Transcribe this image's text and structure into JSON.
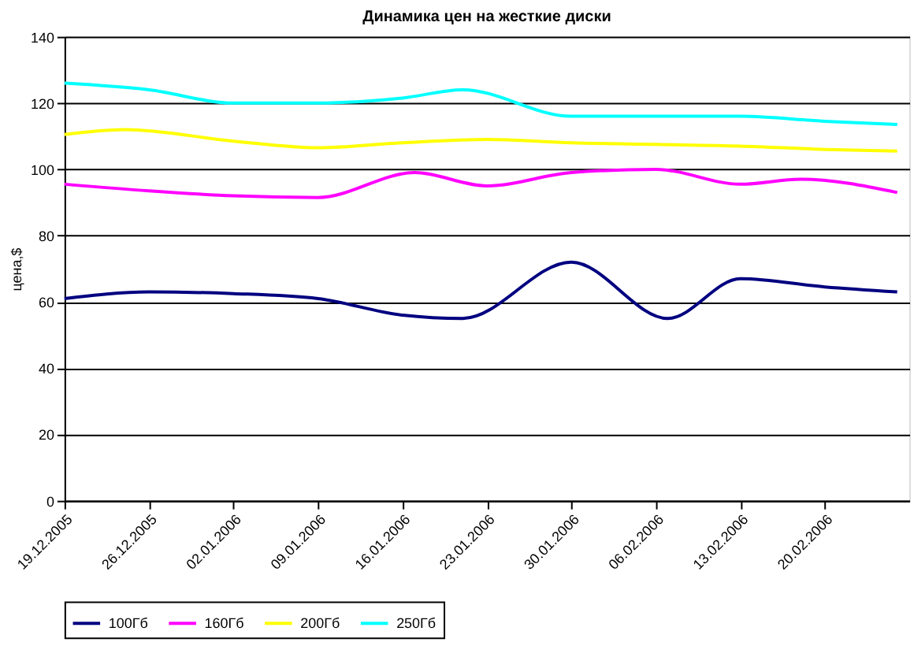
{
  "chart_data": {
    "type": "line",
    "title": "Динамика цен на жесткие диски",
    "ylabel": "цена,$",
    "xlim": [
      "2005-12-19",
      "2006-02-27"
    ],
    "xticks": [
      {
        "value": "2005-12-19",
        "label": "19.12.2005"
      },
      {
        "value": "2005-12-26",
        "label": "26.12.2005"
      },
      {
        "value": "2006-01-02",
        "label": "02.01.2006"
      },
      {
        "value": "2006-01-09",
        "label": "09.01.2006"
      },
      {
        "value": "2006-01-16",
        "label": "16.01.2006"
      },
      {
        "value": "2006-01-23",
        "label": "23.01.2006"
      },
      {
        "value": "2006-01-30",
        "label": "30.01.2006"
      },
      {
        "value": "2006-02-06",
        "label": "06.02.2006"
      },
      {
        "value": "2006-02-13",
        "label": "13.02.2006"
      },
      {
        "value": "2006-02-20",
        "label": "20.02.2006"
      }
    ],
    "ylim": [
      0,
      140
    ],
    "yticks": [
      0,
      20,
      40,
      60,
      80,
      100,
      120,
      140
    ],
    "grid": "y",
    "legend": "bottom",
    "marker": "none",
    "line_style": "solid",
    "series": [
      {
        "name": "100Гб",
        "color": "#000080",
        "x": [
          "2005-12-19",
          "2005-12-26",
          "2006-01-02",
          "2006-01-09",
          "2006-01-16",
          "2006-01-21",
          "2006-01-30",
          "2006-02-07",
          "2006-02-13",
          "2006-02-20",
          "2006-02-26"
        ],
        "values": [
          61,
          63,
          62.5,
          61,
          56,
          55,
          72,
          55,
          67,
          64.5,
          63
        ]
      },
      {
        "name": "160Гб",
        "color": "#ff00ff",
        "x": [
          "2005-12-19",
          "2005-12-26",
          "2006-01-02",
          "2006-01-09",
          "2006-01-17",
          "2006-01-23",
          "2006-01-30",
          "2006-02-06",
          "2006-02-13",
          "2006-02-18",
          "2006-02-26"
        ],
        "values": [
          95.5,
          93.5,
          92,
          91.5,
          99,
          95,
          99,
          100,
          95.5,
          97,
          93
        ]
      },
      {
        "name": "200Гб",
        "color": "#ffff00",
        "x": [
          "2005-12-19",
          "2005-12-24",
          "2006-01-02",
          "2006-01-09",
          "2006-01-16",
          "2006-01-23",
          "2006-01-30",
          "2006-02-06",
          "2006-02-13",
          "2006-02-20",
          "2006-02-26"
        ],
        "values": [
          110.5,
          112,
          108.5,
          106.5,
          108,
          109,
          108,
          107.5,
          107,
          106,
          105.5
        ]
      },
      {
        "name": "250Гб",
        "color": "#00ffff",
        "x": [
          "2005-12-19",
          "2005-12-26",
          "2006-01-02",
          "2006-01-09",
          "2006-01-16",
          "2006-01-21",
          "2006-01-30",
          "2006-02-06",
          "2006-02-13",
          "2006-02-20",
          "2006-02-26"
        ],
        "values": [
          126,
          124,
          120,
          120,
          121.5,
          124,
          116,
          116,
          116,
          114.5,
          113.5
        ]
      }
    ]
  }
}
